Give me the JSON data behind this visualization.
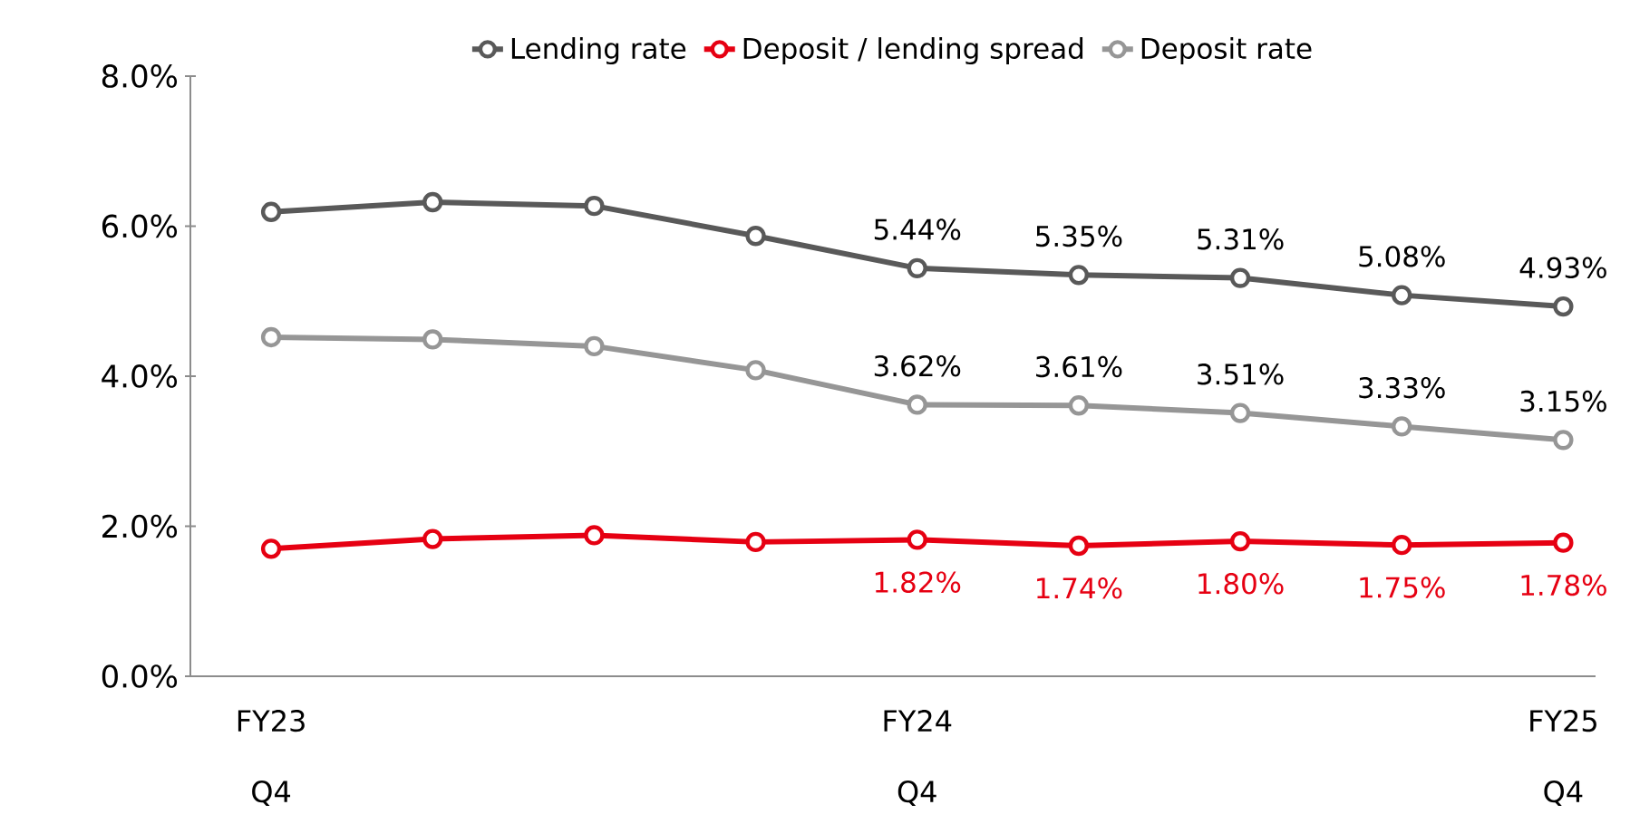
{
  "chart_data": {
    "type": "line",
    "categories": [
      "FY23 Q4",
      null,
      null,
      null,
      "FY24 Q4",
      null,
      null,
      null,
      "FY25 Q4"
    ],
    "ylim": [
      0,
      8
    ],
    "yticks": [
      {
        "value": 0,
        "label": "0.0%"
      },
      {
        "value": 2,
        "label": "2.0%"
      },
      {
        "value": 4,
        "label": "4.0%"
      },
      {
        "value": 6,
        "label": "6.0%"
      },
      {
        "value": 8,
        "label": "8.0%"
      }
    ],
    "legend": "top",
    "marker": "circle",
    "grid": false,
    "series": [
      {
        "name": "Lending rate",
        "color": "#595959",
        "values": [
          6.19,
          6.32,
          6.27,
          5.87,
          5.44,
          5.35,
          5.31,
          5.08,
          4.93
        ],
        "value_labels": [
          null,
          null,
          null,
          null,
          "5.44%",
          "5.35%",
          "5.31%",
          "5.08%",
          "4.93%"
        ]
      },
      {
        "name": "Deposit / lending spread",
        "color": "#e60012",
        "values": [
          1.7,
          1.83,
          1.88,
          1.79,
          1.82,
          1.74,
          1.8,
          1.75,
          1.78
        ],
        "value_labels": [
          null,
          null,
          null,
          null,
          "1.82%",
          "1.74%",
          "1.80%",
          "1.75%",
          "1.78%"
        ]
      },
      {
        "name": "Deposit rate",
        "color": "#969696",
        "values": [
          4.52,
          4.49,
          4.4,
          4.08,
          3.62,
          3.61,
          3.51,
          3.33,
          3.15
        ],
        "value_labels": [
          null,
          null,
          null,
          null,
          "3.62%",
          "3.61%",
          "3.51%",
          "3.33%",
          "3.15%"
        ]
      }
    ]
  }
}
